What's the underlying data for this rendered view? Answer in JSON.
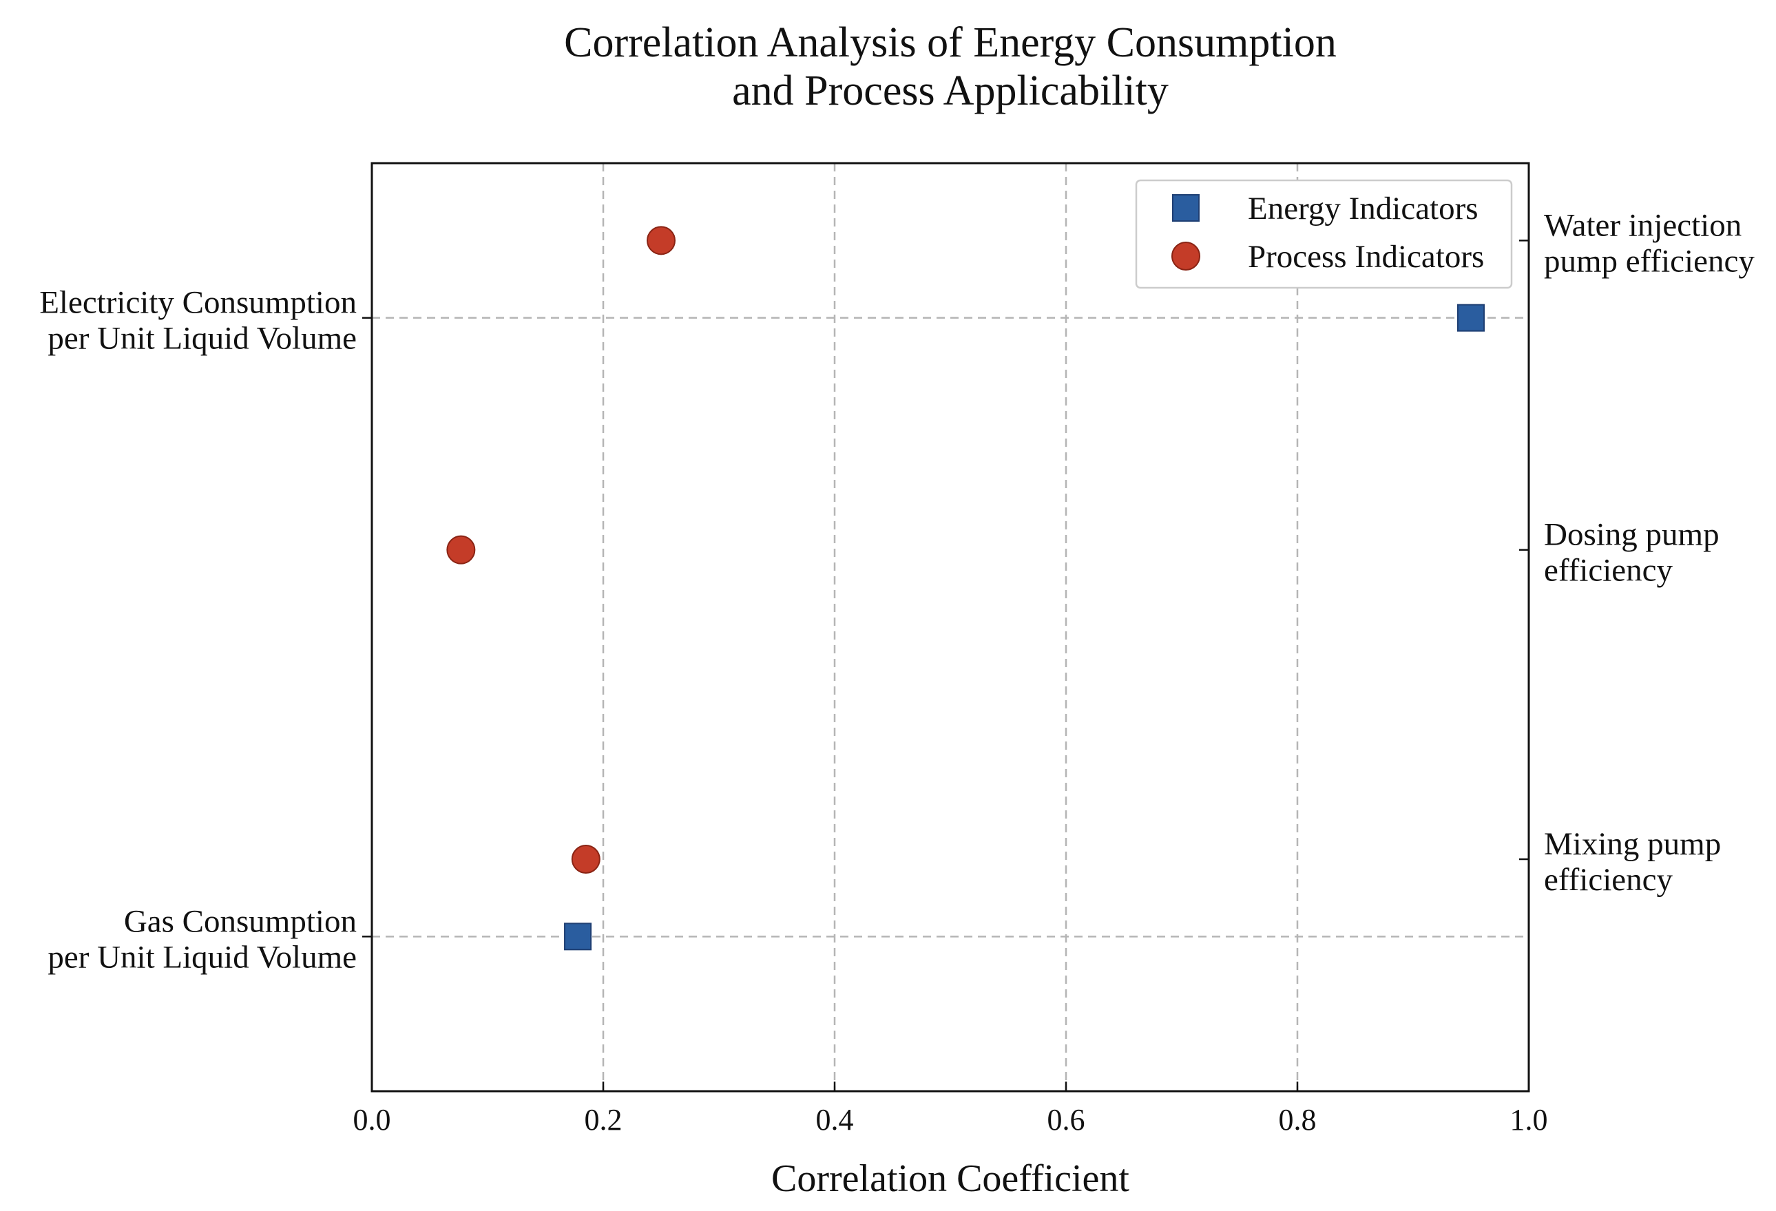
{
  "chart_data": {
    "type": "scatter",
    "title": [
      "Correlation Analysis of Energy Consumption",
      "and Process Applicability"
    ],
    "xlabel": "Correlation Coefficient",
    "xlim": [
      0.0,
      1.0
    ],
    "xticks": [
      0.0,
      0.2,
      0.4,
      0.6,
      0.8,
      1.0
    ],
    "xtick_labels": [
      "0.0",
      "0.2",
      "0.4",
      "0.6",
      "0.8",
      "1.0"
    ],
    "ylim": [
      -1.5,
      1.5
    ],
    "grid": true,
    "legend_position": "top-right",
    "left_axis_labels": [
      {
        "lines": [
          "Electricity Consumption",
          "per Unit Liquid Volume"
        ],
        "y": 1.0
      },
      {
        "lines": [
          "Gas Consumption",
          "per Unit Liquid Volume"
        ],
        "y": -1.0
      }
    ],
    "right_axis_labels": [
      {
        "lines": [
          "Water injection",
          "pump efficiency"
        ],
        "y": 1.25
      },
      {
        "lines": [
          "Dosing pump",
          "efficiency"
        ],
        "y": 0.25
      },
      {
        "lines": [
          "Mixing pump",
          "efficiency"
        ],
        "y": -0.75
      }
    ],
    "series": [
      {
        "name": "Energy Indicators",
        "marker": "square",
        "color": "#2a5d9f",
        "points": [
          {
            "label": "Electricity Consumption per Unit Liquid Volume",
            "x": 0.95,
            "y": 1.0
          },
          {
            "label": "Gas Consumption per Unit Liquid Volume",
            "x": 0.178,
            "y": -1.0
          }
        ]
      },
      {
        "name": "Process Indicators",
        "marker": "circle",
        "color": "#c43c28",
        "points": [
          {
            "label": "Water injection pump efficiency",
            "x": 0.25,
            "y": 1.25
          },
          {
            "label": "Dosing pump efficiency",
            "x": 0.077,
            "y": 0.25
          },
          {
            "label": "Mixing pump efficiency",
            "x": 0.185,
            "y": -0.75
          }
        ]
      }
    ]
  }
}
